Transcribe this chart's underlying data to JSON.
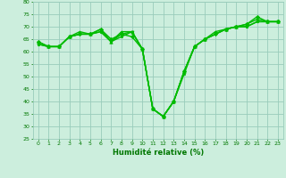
{
  "xlabel": "Humidité relative (%)",
  "background_color": "#cceedd",
  "grid_color": "#99ccbb",
  "line_color": "#00bb00",
  "marker_color": "#00bb00",
  "xlim": [
    -0.5,
    23.5
  ],
  "ylim": [
    25,
    80
  ],
  "yticks": [
    25,
    30,
    35,
    40,
    45,
    50,
    55,
    60,
    65,
    70,
    75,
    80
  ],
  "xticks": [
    0,
    1,
    2,
    3,
    4,
    5,
    6,
    7,
    8,
    9,
    10,
    11,
    12,
    13,
    14,
    15,
    16,
    17,
    18,
    19,
    20,
    21,
    22,
    23
  ],
  "series": [
    {
      "y": [
        64,
        62,
        62,
        66,
        67,
        67,
        69,
        65,
        67,
        66,
        61,
        37,
        34,
        40,
        52,
        62,
        65,
        67,
        69,
        70,
        71,
        74,
        72,
        72
      ],
      "marker": "D",
      "ms": 2.2,
      "lw": 1.0
    },
    {
      "y": [
        64,
        62,
        62,
        66,
        68,
        67,
        69,
        64,
        68,
        68,
        61,
        37,
        34,
        40,
        52,
        62,
        65,
        68,
        69,
        70,
        71,
        73,
        72,
        72
      ],
      "marker": "^",
      "ms": 2.5,
      "lw": 1.0
    },
    {
      "y": [
        63,
        62,
        62,
        66,
        67,
        67,
        68,
        64,
        67,
        68,
        61,
        37,
        34,
        40,
        52,
        62,
        65,
        67,
        69,
        70,
        70,
        72,
        72,
        72
      ],
      "marker": "v",
      "ms": 2.2,
      "lw": 1.0
    },
    {
      "y": [
        63,
        62,
        62,
        66,
        67,
        67,
        68,
        64,
        66,
        68,
        61,
        37,
        34,
        40,
        51,
        62,
        65,
        67,
        69,
        70,
        70,
        72,
        72,
        72
      ],
      "marker": "s",
      "ms": 1.8,
      "lw": 1.0
    }
  ],
  "xlabel_fontsize": 6,
  "tick_fontsize": 4.5,
  "tick_color": "#007700"
}
